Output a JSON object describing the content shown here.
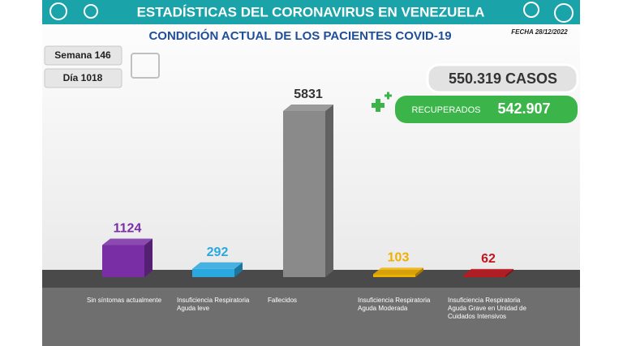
{
  "chart_data": {
    "type": "bar3d",
    "title": "ESTADÍSTICAS DEL CORONAVIRUS EN VENEZUELA",
    "subtitle": "CONDICIÓN ACTUAL DE LOS PACIENTES COVID-19",
    "date": "FECHA 28/12/2022",
    "week": "Semana 146",
    "day": "Día 1018",
    "cases": "550.319 CASOS",
    "recovered_label": "RECUPERADOS",
    "recovered": "542.907",
    "categories": [
      "Sin síntomas actualmente",
      "Insuficiencia Respiratoria Aguda leve",
      "Fallecidos",
      "Insuficiencia Respiratoria Aguda Moderada",
      "Insuficiencia Respiratoria Aguda Grave en Unidad de Cuidados Intensivos"
    ],
    "values": [
      1124,
      292,
      5831,
      103,
      62
    ],
    "colors": [
      "#7a2ea6",
      "#2aa8e0",
      "#8a8a8a",
      "#f0b000",
      "#c0161e"
    ]
  }
}
